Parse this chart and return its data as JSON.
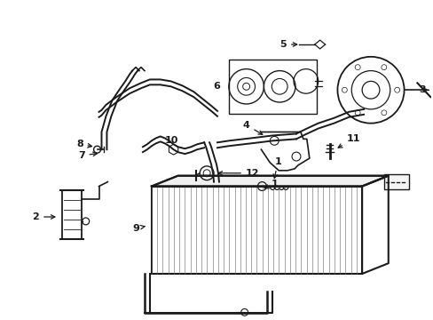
{
  "background_color": "#ffffff",
  "fig_width": 4.89,
  "fig_height": 3.6,
  "dpi": 100,
  "line_color": "#1a1a1a"
}
